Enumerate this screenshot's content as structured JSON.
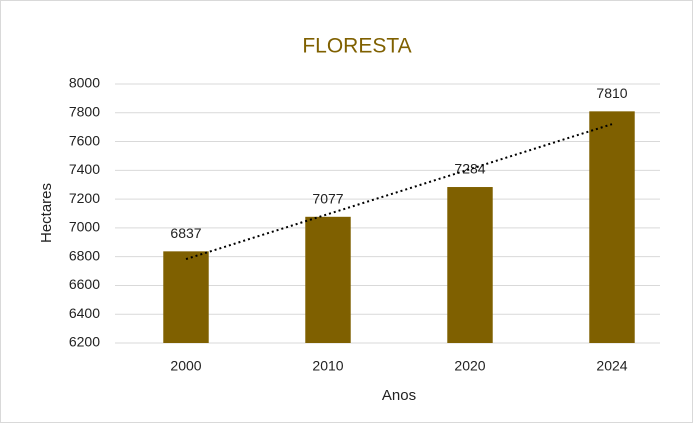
{
  "chart_data": {
    "type": "bar",
    "title": "FLORESTA",
    "categories": [
      "2000",
      "2010",
      "2020",
      "2024"
    ],
    "values": [
      6837,
      7077,
      7284,
      7810
    ],
    "color": "#7f6000",
    "title_color": "#7f6000",
    "y_label": "Hectares",
    "x_label": "Anos",
    "ylim": [
      6200,
      8000
    ],
    "yticks": [
      6200,
      6400,
      6600,
      6800,
      7000,
      7200,
      7400,
      7600,
      7800,
      8000
    ],
    "grid": true,
    "trendline": "linear"
  }
}
